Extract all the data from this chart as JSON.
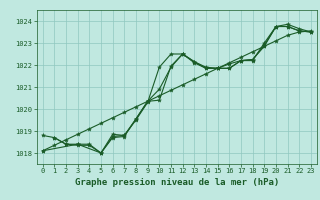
{
  "title": "Graphe pression niveau de la mer (hPa)",
  "bg_color": "#c0e8e0",
  "grid_color": "#90c8c0",
  "line_color": "#1a5c28",
  "ylim": [
    1017.5,
    1024.5
  ],
  "xlim": [
    -0.5,
    23.5
  ],
  "yticks": [
    1018,
    1019,
    1020,
    1021,
    1022,
    1023,
    1024
  ],
  "xticks": [
    0,
    1,
    2,
    3,
    4,
    5,
    6,
    7,
    8,
    9,
    10,
    11,
    12,
    13,
    14,
    15,
    16,
    17,
    18,
    19,
    20,
    21,
    22,
    23
  ],
  "line1_x": [
    0,
    1,
    2,
    3,
    4,
    5,
    6,
    7,
    8,
    9,
    10,
    11,
    12,
    13,
    14,
    15,
    16,
    17,
    18,
    19,
    20,
    21,
    22,
    23
  ],
  "line1_y": [
    1018.1,
    1018.35,
    1018.6,
    1018.85,
    1019.1,
    1019.35,
    1019.6,
    1019.85,
    1020.1,
    1020.35,
    1020.6,
    1020.85,
    1021.1,
    1021.35,
    1021.6,
    1021.85,
    1022.1,
    1022.35,
    1022.6,
    1022.85,
    1023.1,
    1023.35,
    1023.5,
    1023.55
  ],
  "line2_x": [
    0,
    1,
    2,
    3,
    4,
    5,
    6,
    7,
    8,
    9,
    10,
    11,
    12,
    13,
    14,
    15,
    16,
    17,
    18,
    19,
    20,
    21,
    22,
    23
  ],
  "line2_y": [
    1018.8,
    1018.7,
    1018.4,
    1018.4,
    1018.4,
    1018.0,
    1018.75,
    1018.8,
    1019.5,
    1020.3,
    1021.9,
    1022.5,
    1022.5,
    1022.15,
    1021.9,
    1021.85,
    1021.85,
    1022.2,
    1022.25,
    1022.85,
    1023.75,
    1023.75,
    1023.55,
    1023.5
  ],
  "line3_x": [
    1,
    2,
    3,
    4,
    5,
    6,
    7,
    8,
    9,
    10,
    11,
    12,
    13,
    14,
    15,
    16,
    17,
    18,
    19,
    20,
    21,
    22,
    23
  ],
  "line3_y": [
    1018.7,
    1018.4,
    1018.35,
    1018.35,
    1018.0,
    1018.7,
    1018.75,
    1019.55,
    1020.35,
    1020.4,
    1021.95,
    1022.5,
    1022.1,
    1021.85,
    1021.85,
    1022.05,
    1022.2,
    1022.25,
    1022.9,
    1023.75,
    1023.75,
    1023.55,
    1023.5
  ],
  "line4_x": [
    0,
    3,
    5,
    6,
    7,
    8,
    9,
    10,
    11,
    12,
    13,
    14,
    15,
    16,
    17,
    18,
    19,
    20,
    21,
    22,
    23
  ],
  "line4_y": [
    1018.1,
    1018.4,
    1018.0,
    1018.85,
    1018.8,
    1019.55,
    1020.35,
    1020.9,
    1021.9,
    1022.5,
    1022.15,
    1021.85,
    1021.85,
    1021.85,
    1022.2,
    1022.2,
    1023.0,
    1023.75,
    1023.85,
    1023.65,
    1023.5
  ],
  "marker_size": 3,
  "line_width": 0.8,
  "title_fontsize": 6.5,
  "tick_fontsize": 5.0,
  "tick_color": "#1a5c28",
  "title_color": "#1a5c28"
}
